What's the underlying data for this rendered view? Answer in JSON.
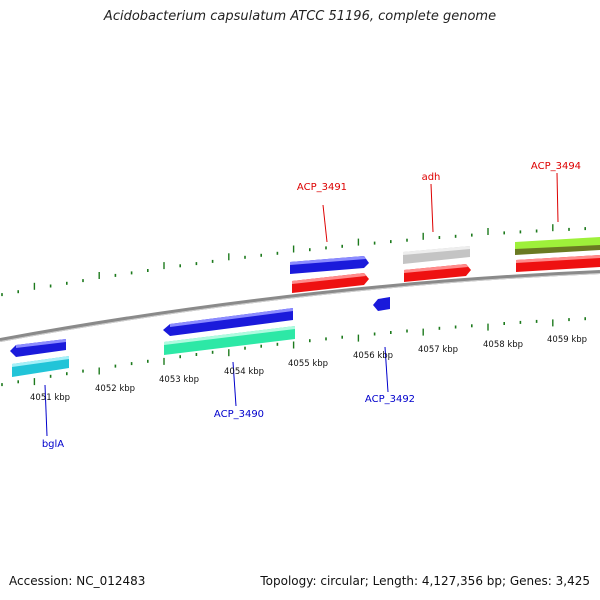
{
  "title": "Acidobacterium capsulatum ATCC 51196, complete genome",
  "footer": {
    "accession": "Accession: NC_012483",
    "summary": "Topology: circular; Length: 4,127,356 bp; Genes: 3,425"
  },
  "colors": {
    "backbone": "#8a8a8a",
    "tick": "#1d7a1d",
    "top_label": "#dd0000",
    "bottom_label": "#0000cc",
    "blue": "#1a1adb",
    "red": "#ee1111",
    "cyan": "#22c4d8",
    "aqua_green": "#2de8a6",
    "gray": "#c4c4c4",
    "lime": "#9ef03a",
    "olive": "#6a7a22"
  },
  "kbp_labels": [
    "4051 kbp",
    "4052 kbp",
    "4053 kbp",
    "4054 kbp",
    "4055 kbp",
    "4056 kbp",
    "4057 kbp",
    "4058 kbp",
    "4059 kbp"
  ],
  "gene_labels": {
    "top": [
      "ACP_3491",
      "adh",
      "ACP_3494"
    ],
    "bottom": [
      "bglA",
      "ACP_3490",
      "ACP_3492"
    ]
  }
}
